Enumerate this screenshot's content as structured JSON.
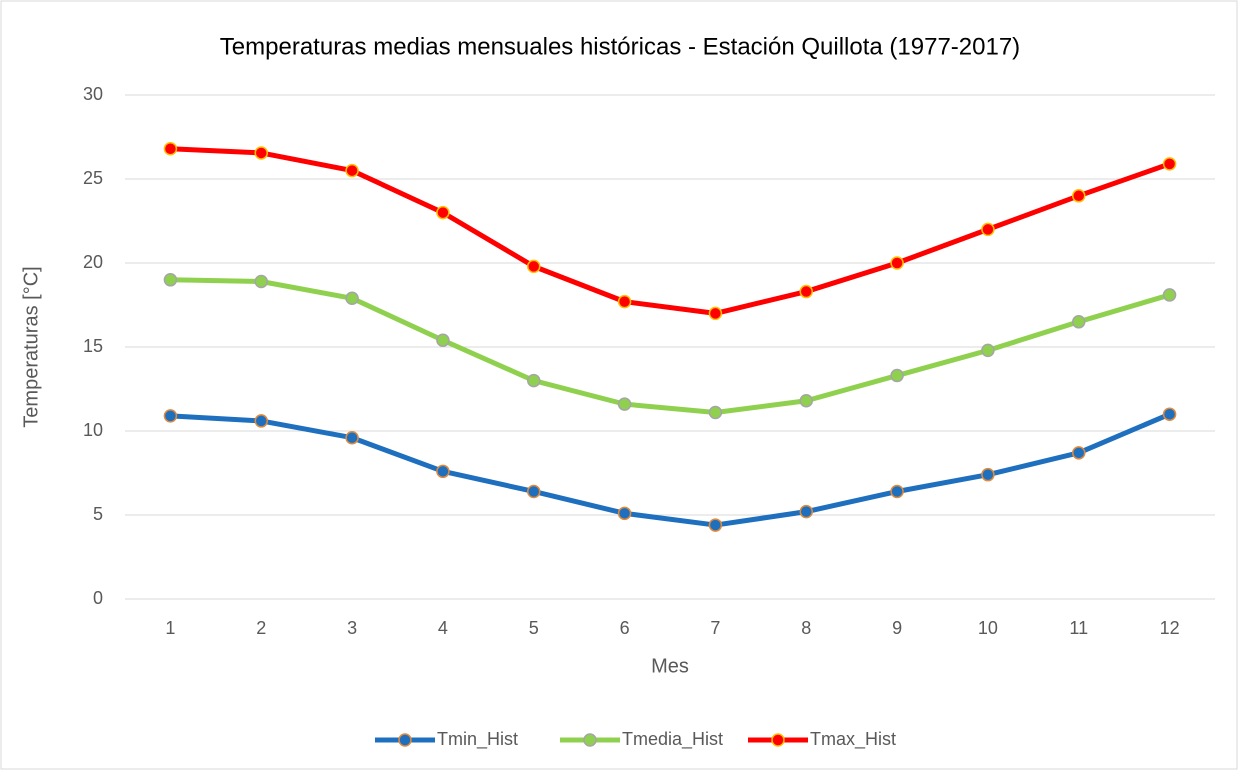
{
  "chart_data": {
    "type": "line",
    "title": "Temperaturas medias mensuales históricas - Estación Quillota (1977-2017)",
    "xlabel": "Mes",
    "ylabel": "Temperaturas [°C]",
    "categories": [
      1,
      2,
      3,
      4,
      5,
      6,
      7,
      8,
      9,
      10,
      11,
      12
    ],
    "series": [
      {
        "name": "Tmin_Hist",
        "color": "#1f6fbf",
        "marker_edge_color": "#e08a3c",
        "values": [
          10.9,
          10.6,
          9.6,
          7.6,
          6.4,
          5.1,
          4.4,
          5.2,
          6.4,
          7.4,
          8.7,
          11.0
        ]
      },
      {
        "name": "Tmedia_Hist",
        "color": "#8fd14f",
        "marker_edge_color": "#a5a5a5",
        "values": [
          19.0,
          18.9,
          17.9,
          15.4,
          13.0,
          11.6,
          11.1,
          11.8,
          13.3,
          14.8,
          16.5,
          18.1
        ]
      },
      {
        "name": "Tmax_Hist",
        "color": "#ff0000",
        "marker_edge_color": "#ffc000",
        "values": [
          26.8,
          26.55,
          25.5,
          23.0,
          19.8,
          17.7,
          17.0,
          18.3,
          20.0,
          22.0,
          24.0,
          25.9
        ]
      }
    ],
    "ylim": [
      0,
      30
    ],
    "yticks": [
      0,
      5,
      10,
      15,
      20,
      25,
      30
    ],
    "grid": true,
    "legend": "bottom"
  }
}
